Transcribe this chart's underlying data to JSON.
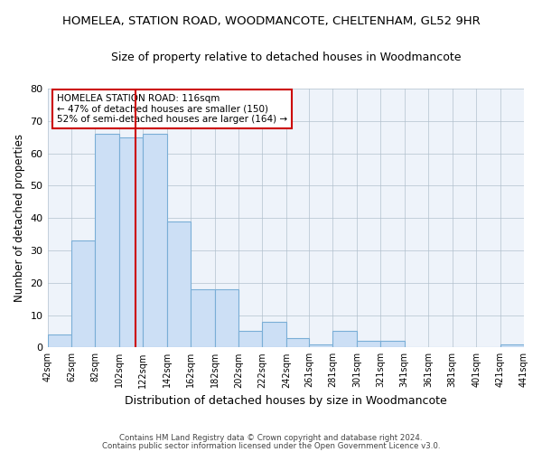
{
  "title": "HOMELEA, STATION ROAD, WOODMANCOTE, CHELTENHAM, GL52 9HR",
  "subtitle": "Size of property relative to detached houses in Woodmancote",
  "xlabel": "Distribution of detached houses by size in Woodmancote",
  "ylabel": "Number of detached properties",
  "bin_edges": [
    42,
    62,
    82,
    102,
    122,
    142,
    162,
    182,
    202,
    222,
    242,
    261,
    281,
    301,
    321,
    341,
    361,
    381,
    401,
    421,
    441
  ],
  "bar_heights": [
    4,
    33,
    66,
    65,
    66,
    39,
    18,
    18,
    5,
    8,
    3,
    1,
    5,
    2,
    2,
    0,
    0,
    0,
    0,
    1
  ],
  "bar_color": "#ccdff5",
  "bar_edge_color": "#7aaed6",
  "vline_x": 116,
  "vline_color": "#cc0000",
  "ylim": [
    0,
    80
  ],
  "yticks": [
    0,
    10,
    20,
    30,
    40,
    50,
    60,
    70,
    80
  ],
  "annotation_title": "HOMELEA STATION ROAD: 116sqm",
  "annotation_line1": "← 47% of detached houses are smaller (150)",
  "annotation_line2": "52% of semi-detached houses are larger (164) →",
  "annotation_box_color": "#ffffff",
  "annotation_box_edge_color": "#cc0000",
  "footer1": "Contains HM Land Registry data © Crown copyright and database right 2024.",
  "footer2": "Contains public sector information licensed under the Open Government Licence v3.0.",
  "background_color": "#ffffff",
  "plot_background_color": "#eef3fa"
}
